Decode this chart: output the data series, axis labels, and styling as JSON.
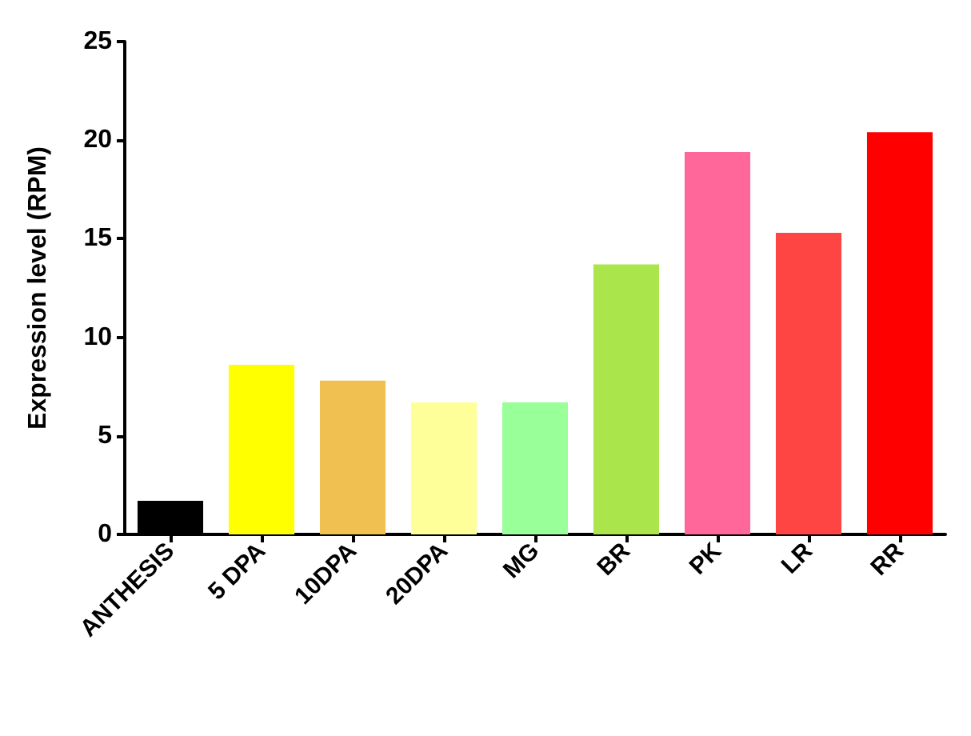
{
  "chart_data": {
    "type": "bar",
    "ylabel": "Expression level (RPM)",
    "categories": [
      "ANTHESIS",
      "5 DPA",
      "10DPA",
      "20DPA",
      "MG",
      "BR",
      "PK",
      "LR",
      "RR"
    ],
    "values": [
      1.7,
      8.6,
      7.8,
      6.7,
      6.7,
      13.7,
      19.4,
      15.3,
      20.4
    ],
    "colors": [
      "#000000",
      "#ffff00",
      "#f0c050",
      "#ffff99",
      "#99ff99",
      "#aae64b",
      "#ff6699",
      "#ff4444",
      "#ff0000"
    ],
    "ylim": [
      0,
      25
    ],
    "yticks": [
      0,
      5,
      10,
      15,
      20,
      25
    ],
    "grid": false
  }
}
